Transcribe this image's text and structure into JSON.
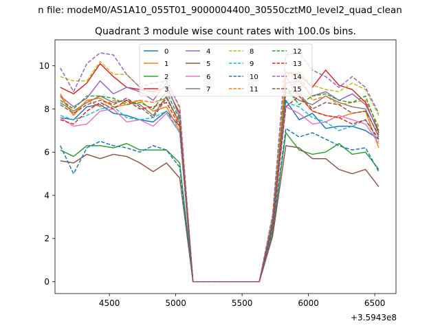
{
  "figure": {
    "suptitle": "n file: modeM0/AS1A10_055T01_9000004400_30550cztM0_level2_quad_clean",
    "offset_label": "+3.5943e8"
  },
  "chart_data": {
    "type": "line",
    "title": "Quadrant 3 module wise count rates with 100.0s bins.",
    "xlabel": "",
    "ylabel": "",
    "x_offset": 359430000,
    "x": [
      4130,
      4230,
      4330,
      4430,
      4530,
      4630,
      4730,
      4830,
      4930,
      5030,
      5130,
      5230,
      5330,
      5430,
      5530,
      5630,
      5730,
      5830,
      5930,
      6030,
      6130,
      6230,
      6330,
      6430,
      6530
    ],
    "xlim": [
      4090,
      6660
    ],
    "ylim": [
      -0.55,
      11.2
    ],
    "xticks": [
      4500,
      5000,
      5500,
      6000,
      6500
    ],
    "yticks": [
      0,
      2,
      4,
      6,
      8,
      10
    ],
    "legend": {
      "placement": "top-center",
      "columns": 4
    },
    "grid": false,
    "series": [
      {
        "name": "0",
        "color": "#1f77b4",
        "dash": "solid",
        "values": [
          7.6,
          7.5,
          8.1,
          8.2,
          7.8,
          7.7,
          7.5,
          7.4,
          7.9,
          7.2,
          0,
          0,
          0,
          0,
          0,
          0,
          2.6,
          8.4,
          7.5,
          7.8,
          7.1,
          7.2,
          7.2,
          7.0,
          6.6
        ]
      },
      {
        "name": "1",
        "color": "#ff7f0e",
        "dash": "solid",
        "values": [
          8.6,
          7.7,
          8.4,
          8.5,
          8.1,
          8.2,
          8.4,
          7.9,
          8.1,
          7.0,
          0,
          0,
          0,
          0,
          0,
          0,
          2.7,
          9.5,
          8.6,
          7.9,
          7.7,
          7.6,
          7.8,
          7.9,
          6.2
        ]
      },
      {
        "name": "2",
        "color": "#2ca02c",
        "dash": "solid",
        "values": [
          6.1,
          5.8,
          6.3,
          6.3,
          6.2,
          6.4,
          6.1,
          6.1,
          6.1,
          5.5,
          0,
          0,
          0,
          0,
          0,
          0,
          2.3,
          6.9,
          6.1,
          5.9,
          6.0,
          6.4,
          5.9,
          6.0,
          5.2
        ]
      },
      {
        "name": "3",
        "color": "#d62728",
        "dash": "solid",
        "values": [
          9.0,
          8.7,
          9.2,
          10.1,
          9.5,
          9.0,
          8.9,
          8.8,
          9.0,
          7.8,
          0,
          0,
          0,
          0,
          0,
          0,
          3.0,
          9.7,
          9.6,
          9.0,
          9.8,
          9.1,
          8.9,
          8.3,
          6.9
        ]
      },
      {
        "name": "4",
        "color": "#9467bd",
        "dash": "solid",
        "values": [
          8.6,
          8.1,
          8.5,
          9.3,
          8.7,
          9.0,
          8.8,
          8.4,
          9.2,
          7.6,
          0,
          0,
          0,
          0,
          0,
          0,
          2.8,
          9.2,
          9.3,
          8.6,
          8.8,
          8.4,
          8.7,
          8.2,
          7.0
        ]
      },
      {
        "name": "5",
        "color": "#8c564b",
        "dash": "solid",
        "values": [
          5.6,
          5.5,
          5.9,
          5.7,
          5.9,
          5.8,
          5.5,
          5.1,
          5.5,
          4.8,
          0,
          0,
          0,
          0,
          0,
          0,
          2.1,
          6.3,
          6.2,
          5.7,
          5.7,
          5.2,
          5.0,
          5.2,
          4.4
        ]
      },
      {
        "name": "6",
        "color": "#e377c2",
        "dash": "solid",
        "values": [
          7.6,
          7.2,
          7.3,
          7.9,
          8.0,
          7.4,
          7.5,
          7.2,
          7.8,
          6.9,
          0,
          0,
          0,
          0,
          0,
          0,
          2.5,
          8.1,
          7.8,
          7.3,
          7.4,
          7.7,
          7.5,
          7.3,
          6.4
        ]
      },
      {
        "name": "7",
        "color": "#7f7f7f",
        "dash": "solid",
        "values": [
          8.3,
          7.9,
          8.3,
          8.6,
          8.3,
          8.4,
          8.2,
          7.7,
          8.6,
          7.3,
          0,
          0,
          0,
          0,
          0,
          0,
          2.7,
          8.8,
          8.4,
          8.2,
          8.6,
          8.3,
          8.1,
          8.0,
          6.7
        ]
      },
      {
        "name": "8",
        "color": "#bcbd22",
        "dash": "dashed",
        "values": [
          9.5,
          9.3,
          9.3,
          10.2,
          9.6,
          9.6,
          9.0,
          8.7,
          9.4,
          8.0,
          0,
          0,
          0,
          0,
          0,
          0,
          3.0,
          9.6,
          9.7,
          9.1,
          8.9,
          8.8,
          9.2,
          8.9,
          7.7
        ]
      },
      {
        "name": "9",
        "color": "#17becf",
        "dash": "dashed",
        "values": [
          7.7,
          7.5,
          7.7,
          8.0,
          8.1,
          7.6,
          7.5,
          7.6,
          7.9,
          6.9,
          0,
          0,
          0,
          0,
          0,
          0,
          2.5,
          8.3,
          8.1,
          7.6,
          7.4,
          7.0,
          7.2,
          7.5,
          6.5
        ]
      },
      {
        "name": "10",
        "color": "#1f77b4",
        "dash": "dashed",
        "values": [
          6.3,
          5.0,
          6.2,
          6.5,
          6.3,
          6.2,
          6.0,
          6.3,
          6.1,
          5.3,
          0,
          0,
          0,
          0,
          0,
          0,
          2.4,
          7.1,
          6.7,
          6.9,
          6.6,
          6.3,
          6.1,
          6.2,
          5.1
        ]
      },
      {
        "name": "11",
        "color": "#ff7f0e",
        "dash": "dashed",
        "values": [
          8.7,
          7.8,
          8.4,
          8.1,
          8.4,
          8.3,
          8.4,
          8.3,
          8.5,
          7.3,
          0,
          0,
          0,
          0,
          0,
          0,
          2.8,
          9.5,
          9.6,
          8.4,
          8.6,
          8.2,
          8.3,
          8.4,
          7.2
        ]
      },
      {
        "name": "12",
        "color": "#2ca02c",
        "dash": "dashed",
        "values": [
          8.4,
          8.0,
          8.6,
          8.6,
          8.5,
          8.2,
          8.3,
          8.0,
          8.8,
          7.5,
          0,
          0,
          0,
          0,
          0,
          0,
          2.8,
          9.0,
          8.2,
          8.6,
          8.7,
          8.4,
          8.3,
          8.6,
          7.0
        ]
      },
      {
        "name": "13",
        "color": "#d62728",
        "dash": "dashed",
        "values": [
          7.5,
          7.3,
          7.9,
          8.3,
          8.0,
          8.4,
          8.0,
          8.1,
          8.3,
          7.2,
          0,
          0,
          0,
          0,
          0,
          0,
          2.6,
          8.1,
          8.6,
          7.9,
          7.7,
          7.6,
          7.3,
          7.5,
          6.6
        ]
      },
      {
        "name": "14",
        "color": "#9467bd",
        "dash": "dashed",
        "values": [
          9.9,
          8.8,
          10.1,
          10.6,
          10.5,
          9.6,
          9.0,
          9.2,
          9.3,
          8.1,
          0,
          0,
          0,
          0,
          0,
          0,
          3.1,
          10.5,
          10.6,
          9.8,
          9.5,
          9.0,
          9.5,
          9.0,
          7.8
        ]
      },
      {
        "name": "15",
        "color": "#8c564b",
        "dash": "dashed",
        "values": [
          8.2,
          7.8,
          8.2,
          8.4,
          8.2,
          8.5,
          8.1,
          7.6,
          8.5,
          7.4,
          0,
          0,
          0,
          0,
          0,
          0,
          2.7,
          8.9,
          8.7,
          8.0,
          8.3,
          8.2,
          7.8,
          7.9,
          6.8
        ]
      }
    ]
  }
}
